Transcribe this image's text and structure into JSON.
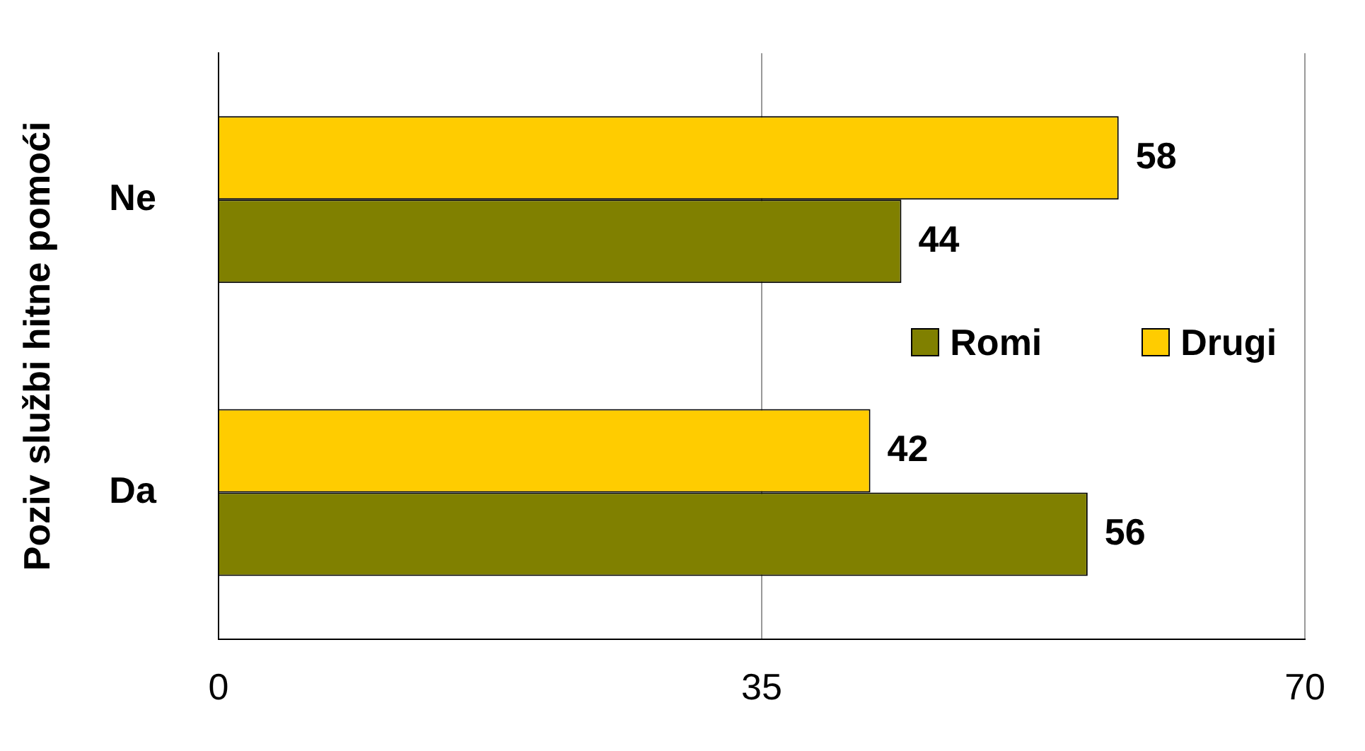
{
  "chart_data": {
    "type": "bar",
    "orientation": "horizontal",
    "ylabel": "Poziv službi hitne pomoći",
    "categories": [
      "Ne",
      "Da"
    ],
    "series": [
      {
        "name": "Drugi",
        "color": "#ffcc00",
        "values": [
          58,
          42
        ]
      },
      {
        "name": "Romi",
        "color": "#808000",
        "values": [
          44,
          56
        ]
      }
    ],
    "xlim": [
      0,
      70
    ],
    "xticks": [
      0,
      35,
      70
    ],
    "grid": "x",
    "legend": "right",
    "data_labels": true
  }
}
